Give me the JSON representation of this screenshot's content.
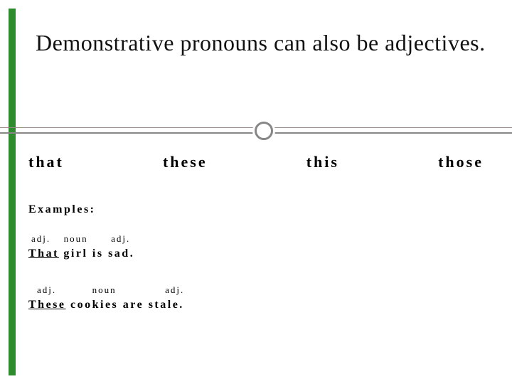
{
  "slide": {
    "background_color": "#ffffff",
    "sidebar_color": "#2e8b2e",
    "divider_color_top": "#9a8a88",
    "divider_color_bot": "#878787",
    "ring_border_color": "#878787",
    "title": "Demonstrative pronouns can also be adjectives.",
    "title_fontsize": 32,
    "title_color": "#111111",
    "words": [
      "that",
      "these",
      "this",
      "those"
    ],
    "word_fontsize": 22,
    "word_letter_spacing": 3,
    "examples_label": "Examples:",
    "example1": {
      "tags": [
        "adj.",
        "noun",
        "adj."
      ],
      "sentence_parts": [
        {
          "text": "That",
          "underline": true
        },
        {
          "text": " girl is sad.",
          "underline": false
        }
      ]
    },
    "example2": {
      "tags": [
        "adj.",
        "noun",
        "adj."
      ],
      "sentence_parts": [
        {
          "text": "These",
          "underline": true
        },
        {
          "text": " cookies are stale.",
          "underline": false
        }
      ]
    }
  }
}
